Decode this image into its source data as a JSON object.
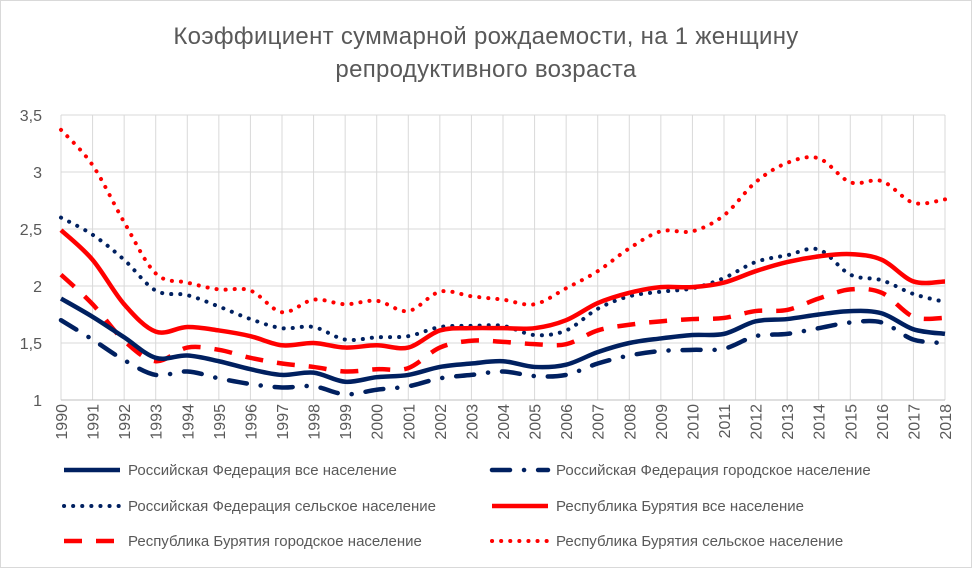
{
  "chart_data": {
    "type": "line",
    "title": "Коэффициент суммарной рождаемости, на 1 женщину репродуктивного возраста",
    "title_lines": [
      "Коэффициент суммарной рождаемости, на 1 женщину",
      "репродуктивного возраста"
    ],
    "xlabel": "",
    "ylabel": "",
    "ylim": [
      1,
      3.5
    ],
    "y_ticks": [
      "1",
      "1,5",
      "2",
      "2,5",
      "3",
      "3,5"
    ],
    "y_tick_values": [
      1,
      1.5,
      2,
      2.5,
      3,
      3.5
    ],
    "grid": true,
    "legend_position": "bottom",
    "categories": [
      "1990",
      "1991",
      "1992",
      "1993",
      "1994",
      "1995",
      "1996",
      "1997",
      "1998",
      "1999",
      "2000",
      "2001",
      "2002",
      "2003",
      "2004",
      "2005",
      "2006",
      "2007",
      "2008",
      "2009",
      "2010",
      "2011",
      "2012",
      "2013",
      "2014",
      "2015",
      "2016",
      "2017",
      "2018"
    ],
    "series": [
      {
        "name": "Российская Федерация все население",
        "color": "#002060",
        "dash": "solid",
        "values": [
          1.89,
          1.73,
          1.55,
          1.37,
          1.39,
          1.34,
          1.27,
          1.22,
          1.24,
          1.16,
          1.2,
          1.22,
          1.29,
          1.32,
          1.34,
          1.29,
          1.31,
          1.42,
          1.5,
          1.54,
          1.57,
          1.58,
          1.69,
          1.71,
          1.75,
          1.78,
          1.76,
          1.62,
          1.58
        ]
      },
      {
        "name": "Российская Федерация городское население",
        "color": "#002060",
        "dash": "dashdot",
        "values": [
          1.7,
          1.53,
          1.35,
          1.22,
          1.25,
          1.19,
          1.14,
          1.11,
          1.12,
          1.05,
          1.09,
          1.12,
          1.19,
          1.22,
          1.25,
          1.21,
          1.22,
          1.32,
          1.39,
          1.43,
          1.44,
          1.45,
          1.56,
          1.58,
          1.63,
          1.68,
          1.68,
          1.53,
          1.5
        ]
      },
      {
        "name": "Российская Федерация сельское население",
        "color": "#002060",
        "dash": "dot",
        "values": [
          2.6,
          2.45,
          2.23,
          1.96,
          1.92,
          1.82,
          1.71,
          1.63,
          1.64,
          1.53,
          1.55,
          1.56,
          1.64,
          1.65,
          1.65,
          1.57,
          1.61,
          1.8,
          1.91,
          1.95,
          1.98,
          2.07,
          2.21,
          2.27,
          2.32,
          2.1,
          2.05,
          1.93,
          1.86
        ]
      },
      {
        "name": "Республика Бурятия все население",
        "color": "#ff0000",
        "dash": "solid",
        "values": [
          2.49,
          2.23,
          1.84,
          1.6,
          1.64,
          1.61,
          1.56,
          1.48,
          1.5,
          1.46,
          1.48,
          1.46,
          1.61,
          1.63,
          1.63,
          1.63,
          1.7,
          1.85,
          1.94,
          1.99,
          1.99,
          2.03,
          2.13,
          2.21,
          2.26,
          2.28,
          2.23,
          2.04,
          2.04
        ]
      },
      {
        "name": "Республика Бурятия городское население",
        "color": "#ff0000",
        "dash": "dash",
        "values": [
          2.1,
          1.84,
          1.52,
          1.34,
          1.46,
          1.44,
          1.37,
          1.32,
          1.29,
          1.25,
          1.27,
          1.28,
          1.46,
          1.52,
          1.51,
          1.49,
          1.49,
          1.61,
          1.66,
          1.69,
          1.71,
          1.72,
          1.78,
          1.79,
          1.89,
          1.97,
          1.94,
          1.73,
          1.72
        ]
      },
      {
        "name": "Республика Бурятия сельское население",
        "color": "#ff0000",
        "dash": "dot",
        "values": [
          3.37,
          3.06,
          2.56,
          2.11,
          2.03,
          1.97,
          1.96,
          1.77,
          1.88,
          1.84,
          1.87,
          1.78,
          1.95,
          1.91,
          1.88,
          1.84,
          1.98,
          2.13,
          2.33,
          2.48,
          2.48,
          2.62,
          2.91,
          3.08,
          3.12,
          2.91,
          2.92,
          2.73,
          2.76
        ]
      }
    ]
  }
}
